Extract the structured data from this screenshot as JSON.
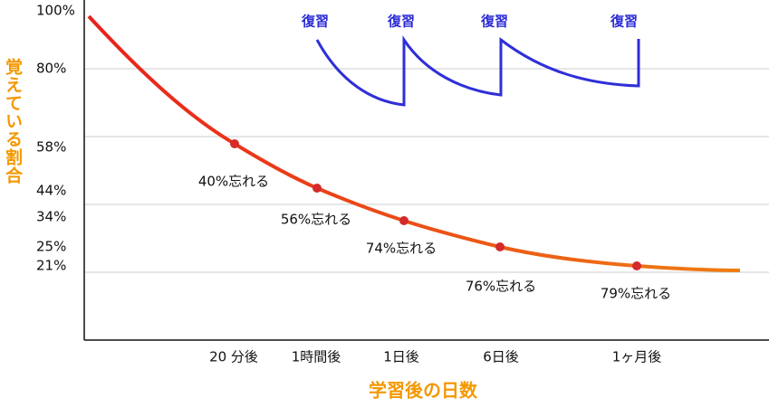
{
  "y_axis_label": "覚えている割合",
  "x_axis_label": "学習後の日数",
  "y_labels": [
    "100%",
    "80%",
    "58%",
    "44%",
    "34%",
    "25%",
    "21%"
  ],
  "x_labels": [
    "20 分後",
    "1時間後",
    "1日後",
    "6日後",
    "1ヶ月後"
  ],
  "annotations": [
    "40%忘れる",
    "56%忘れる",
    "74%忘れる",
    "76%忘れる",
    "79%忘れる"
  ],
  "reviews": [
    "復習",
    "復習",
    "復習",
    "復習"
  ]
}
